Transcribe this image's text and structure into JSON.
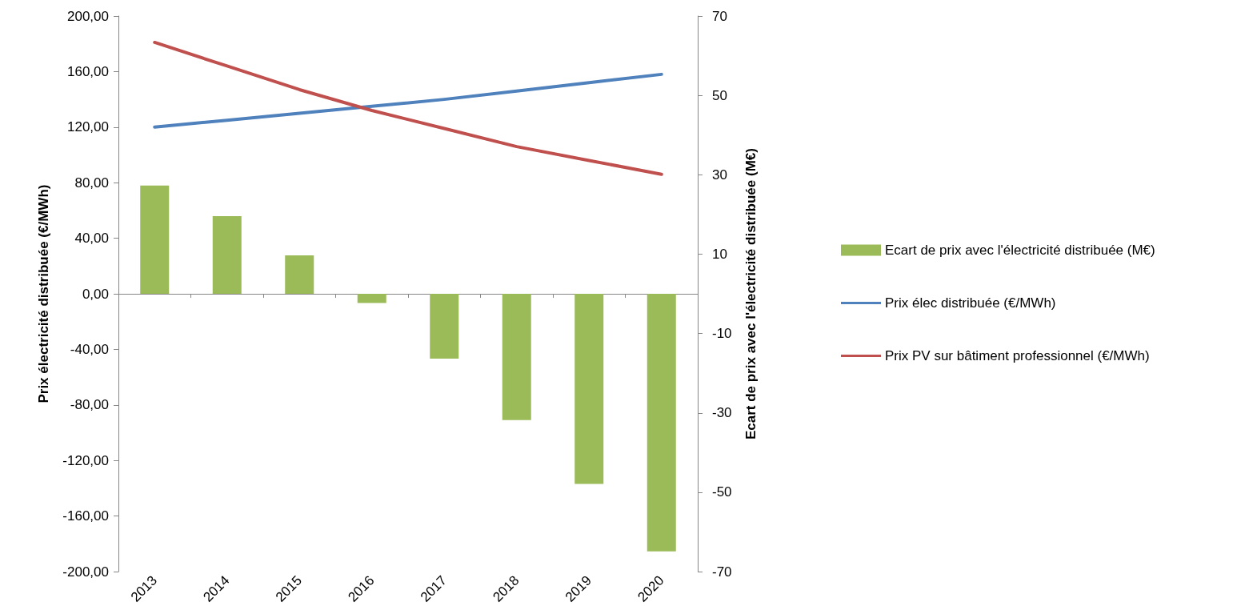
{
  "chart_data": {
    "type": "bar",
    "ylabel": "Prix électricité distribuée (€/MWh)",
    "y2label": "Ecart de prix avec l'électricité distribuée (M€)",
    "categories": [
      "2013",
      "2014",
      "2015",
      "2016",
      "2017",
      "2018",
      "2019",
      "2020"
    ],
    "series": [
      {
        "name": "Ecart de prix avec l'électricité distribuée (M€)",
        "axis": "y2",
        "color": "#9bbb59",
        "values": [
          27.3,
          19.6,
          9.7,
          -2.3,
          -16.3,
          -31.8,
          -47.9,
          -64.9
        ]
      },
      {
        "name": "Prix élec distribuée (€/MWh)",
        "type": "line",
        "color": "#4f81bd",
        "values": [
          120,
          125,
          130,
          135,
          140,
          146,
          152,
          158
        ]
      },
      {
        "name": "Prix PV sur bâtiment professionnel (€/MWh)",
        "type": "line",
        "color": "#c0504d",
        "values": [
          181,
          164,
          147,
          132,
          119,
          106,
          96,
          86
        ]
      }
    ],
    "ylim": [
      -200,
      200
    ],
    "yticks": [
      {
        "value": -200,
        "label": "-200,00"
      },
      {
        "value": -160,
        "label": "-160,00"
      },
      {
        "value": -120,
        "label": "-120,00"
      },
      {
        "value": -80,
        "label": "-80,00"
      },
      {
        "value": -40,
        "label": "-40,00"
      },
      {
        "value": 0,
        "label": "0,00"
      },
      {
        "value": 40,
        "label": "40,00"
      },
      {
        "value": 80,
        "label": "80,00"
      },
      {
        "value": 120,
        "label": "120,00"
      },
      {
        "value": 160,
        "label": "160,00"
      },
      {
        "value": 200,
        "label": "200,00"
      }
    ],
    "y2lim": [
      -70,
      70
    ],
    "y2ticks": [
      -70,
      -50,
      -30,
      -10,
      10,
      30,
      50,
      70
    ],
    "legend": "right",
    "marker": "none",
    "line_style": "solid"
  }
}
